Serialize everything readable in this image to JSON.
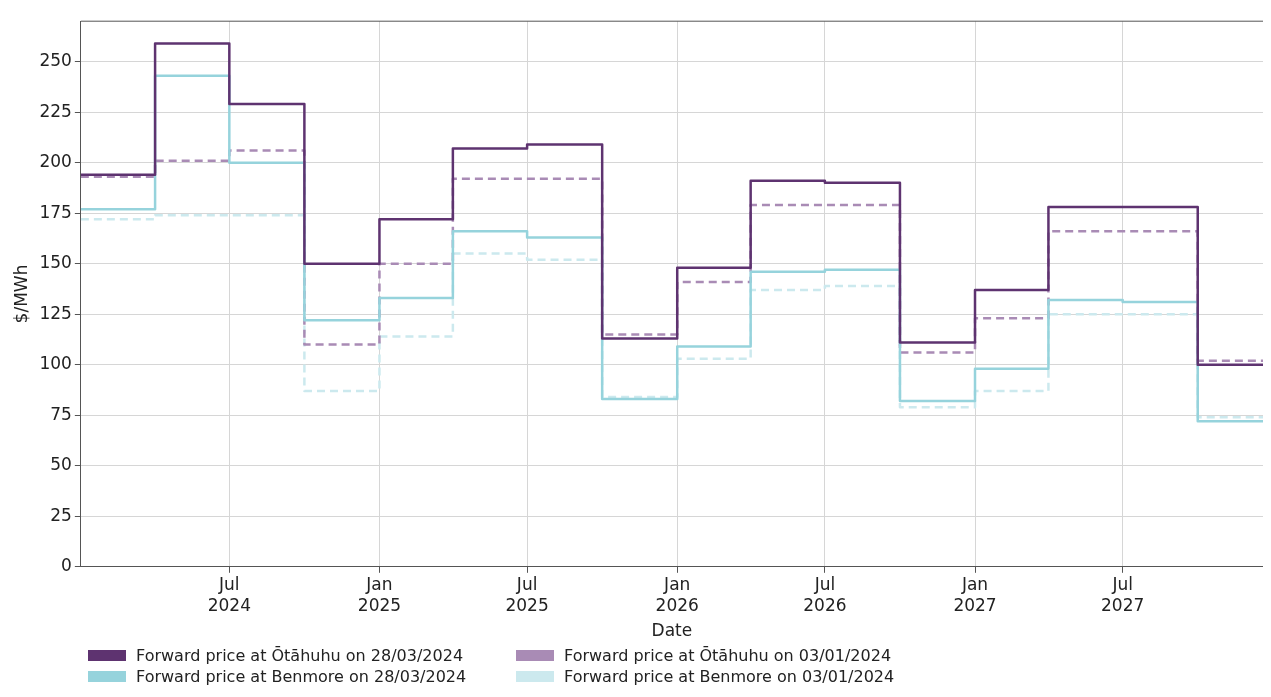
{
  "chart_data": {
    "type": "step",
    "xlabel": "Date",
    "ylabel": "$/MWh",
    "x": [
      "2024-01-01",
      "2024-04-01",
      "2024-07-01",
      "2024-10-01",
      "2025-01-01",
      "2025-04-01",
      "2025-07-01",
      "2025-10-01",
      "2026-01-01",
      "2026-04-01",
      "2026-07-01",
      "2026-10-01",
      "2027-01-01",
      "2027-04-01",
      "2027-07-01",
      "2027-10-01",
      "2027-12-20"
    ],
    "series": [
      {
        "name": "Forward price at Ōtāhuhu on 28/03/2024",
        "color": "#5e3370",
        "line_style": "solid",
        "values": [
          194,
          259,
          229,
          150,
          172,
          207,
          209,
          113,
          148,
          191,
          190,
          111,
          137,
          178,
          178,
          100,
          100
        ]
      },
      {
        "name": "Forward price at Benmore on 28/03/2024",
        "color": "#96d3dc",
        "line_style": "solid",
        "values": [
          177,
          243,
          200,
          122,
          133,
          166,
          163,
          83,
          109,
          146,
          147,
          82,
          98,
          132,
          131,
          72,
          72
        ]
      },
      {
        "name": "Forward price at Ōtāhuhu on 03/01/2024",
        "color": "#a98bb5",
        "line_style": "dashed",
        "values": [
          193,
          201,
          206,
          110,
          150,
          192,
          192,
          115,
          141,
          179,
          179,
          106,
          123,
          166,
          166,
          102,
          102
        ]
      },
      {
        "name": "Forward price at Benmore on 03/01/2024",
        "color": "#cce9ee",
        "line_style": "dashed",
        "values": [
          172,
          174,
          174,
          87,
          114,
          155,
          152,
          84,
          103,
          137,
          139,
          79,
          87,
          125,
          125,
          74,
          74
        ]
      }
    ],
    "xlim": [
      "2024-01-01",
      "2027-12-20"
    ],
    "xticks": [
      {
        "value": "2024-07-01",
        "label": "Jul\n2024"
      },
      {
        "value": "2025-01-01",
        "label": "Jan\n2025"
      },
      {
        "value": "2025-07-01",
        "label": "Jul\n2025"
      },
      {
        "value": "2026-01-01",
        "label": "Jan\n2026"
      },
      {
        "value": "2026-07-01",
        "label": "Jul\n2026"
      },
      {
        "value": "2027-01-01",
        "label": "Jan\n2027"
      },
      {
        "value": "2027-07-01",
        "label": "Jul\n2027"
      }
    ],
    "ylim": [
      0,
      270
    ],
    "yticks": [
      0,
      25,
      50,
      75,
      100,
      125,
      150,
      175,
      200,
      225,
      250
    ],
    "grid": true,
    "legend": "bottom left",
    "marker": "none"
  }
}
